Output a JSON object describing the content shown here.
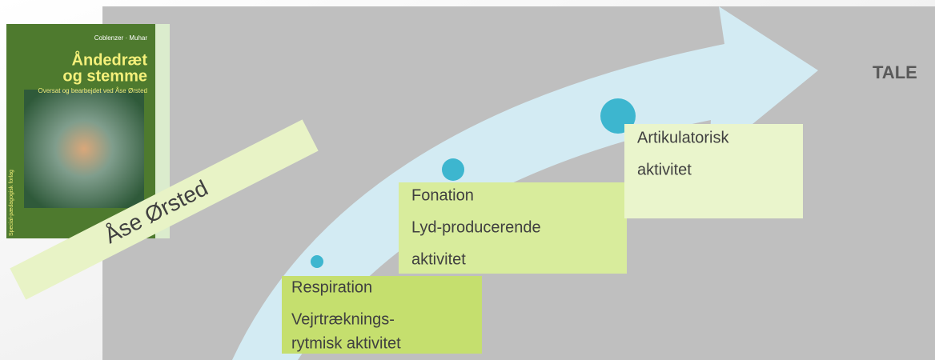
{
  "book": {
    "authors": "Coblenzer · Muhar",
    "title_line1": "Åndedræt",
    "title_line2": "og stemme",
    "subtitle": "Oversat og bearbejdet ved Åse Ørsted",
    "publisher": "Special-pædagogisk forlag"
  },
  "banner": "Åse Ørsted",
  "goal": "TALE",
  "steps": [
    {
      "line1": "Respiration",
      "line2": "Vejrtræknings-",
      "line3": "rytmisk aktivitet"
    },
    {
      "line1": "Fonation",
      "line2": "Lyd-producerende",
      "line3": "aktivitet"
    },
    {
      "line1": "Artikulatorisk",
      "line2": "aktivitet"
    }
  ]
}
